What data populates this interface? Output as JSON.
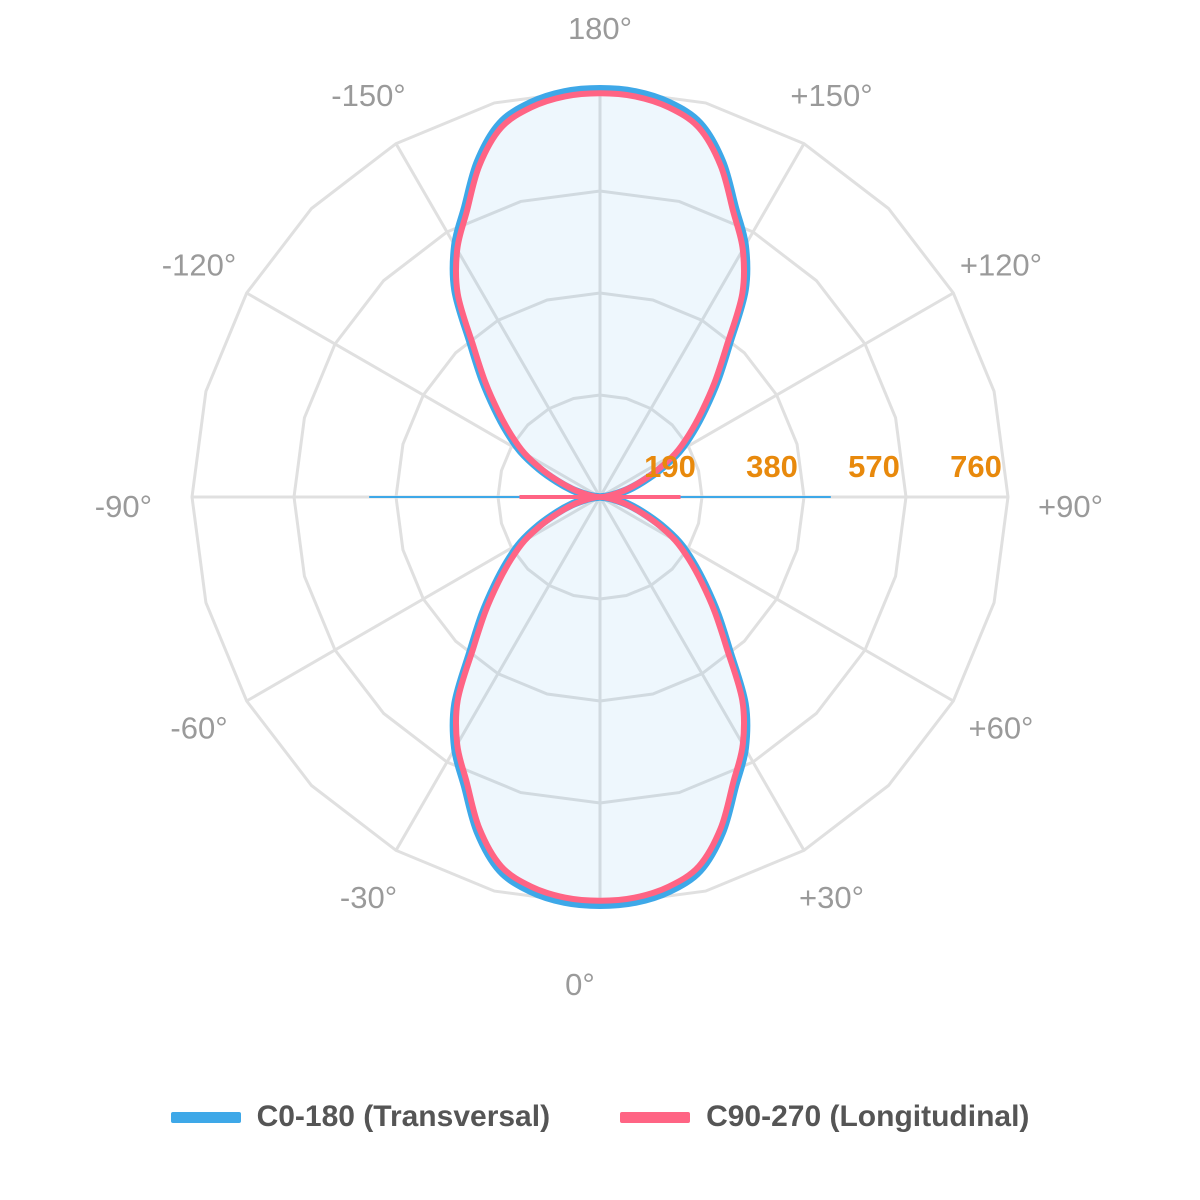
{
  "chart_data": {
    "type": "polar",
    "title": "",
    "radial_ticks": [
      190,
      380,
      570,
      760
    ],
    "radial_max": 760,
    "angle_labels": [
      {
        "angle": 180,
        "label": "180°"
      },
      {
        "angle": 150,
        "label": "+150°"
      },
      {
        "angle": 120,
        "label": "+120°"
      },
      {
        "angle": 90,
        "label": "+90°"
      },
      {
        "angle": 60,
        "label": "+60°"
      },
      {
        "angle": 30,
        "label": "+30°"
      },
      {
        "angle": 0,
        "label": "0°"
      },
      {
        "angle": -30,
        "label": "-30°"
      },
      {
        "angle": -60,
        "label": "-60°"
      },
      {
        "angle": -90,
        "label": "-90°"
      },
      {
        "angle": -120,
        "label": "-120°"
      },
      {
        "angle": -150,
        "label": "-150°"
      }
    ],
    "angles": [
      0,
      5,
      10,
      15,
      20,
      25,
      30,
      35,
      40,
      45,
      50,
      55,
      60,
      65,
      70,
      75,
      80,
      85,
      90
    ],
    "series": [
      {
        "name": "C0-180 (Transversal)",
        "color": "#3ea8e8",
        "values": [
          760,
          757,
          745,
          720,
          665,
          595,
          540,
          470,
          375,
          310,
          255,
          210,
          170,
          125,
          85,
          55,
          30,
          15,
          5
        ],
        "values_back": [
          760,
          757,
          745,
          720,
          665,
          595,
          540,
          470,
          375,
          310,
          255,
          210,
          170,
          125,
          85,
          55,
          30,
          15,
          5
        ],
        "horizontal_spike": [
          430,
          0
        ]
      },
      {
        "name": "C90-270 (Longitudinal)",
        "color": "#ff6484",
        "values": [
          752,
          749,
          737,
          712,
          657,
          587,
          532,
          462,
          367,
          302,
          247,
          202,
          162,
          117,
          77,
          47,
          22,
          10,
          3
        ],
        "values_back": [
          752,
          749,
          737,
          712,
          657,
          587,
          532,
          462,
          367,
          302,
          247,
          202,
          162,
          117,
          77,
          47,
          22,
          10,
          3
        ],
        "horizontal_spike": [
          0,
          0
        ]
      }
    ],
    "legend_position": "bottom-center",
    "grid": true
  }
}
